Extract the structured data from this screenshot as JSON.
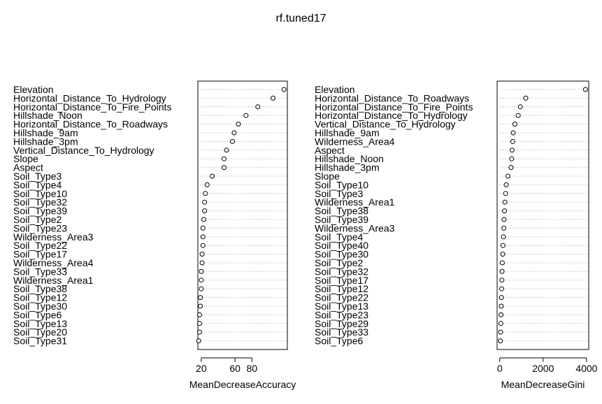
{
  "title": "rf.tuned17",
  "chart_data": [
    {
      "type": "dotchart",
      "xlabel": "MeanDecreaseAccuracy",
      "xticks": [
        20,
        60,
        80
      ],
      "xlim": [
        16,
        122
      ],
      "labels": [
        "Elevation",
        "Horizontal_Distance_To_Hydrology",
        "Horizontal_Distance_To_Fire_Points",
        "Hillshade_Noon",
        "Horizontal_Distance_To_Roadways",
        "Hillshade_9am",
        "Hillshade_3pm",
        "Vertical_Distance_To_Hydrology",
        "Slope",
        "Aspect",
        "Soil_Type3",
        "Soil_Type4",
        "Soil_Type10",
        "Soil_Type32",
        "Soil_Type39",
        "Soil_Type2",
        "Soil_Type23",
        "Wilderness_Area3",
        "Soil_Type22",
        "Soil_Type17",
        "Wilderness_Area4",
        "Soil_Type33",
        "Wilderness_Area1",
        "Soil_Type38",
        "Soil_Type12",
        "Soil_Type30",
        "Soil_Type6",
        "Soil_Type13",
        "Soil_Type20",
        "Soil_Type31"
      ],
      "values": [
        118,
        105,
        87,
        73,
        64,
        59,
        57,
        50,
        47,
        47,
        33,
        27,
        25,
        24,
        24,
        23,
        22,
        22,
        22,
        21,
        21,
        20,
        20,
        20,
        19,
        19,
        18,
        18,
        18,
        17
      ]
    },
    {
      "type": "dotchart",
      "xlabel": "MeanDecreaseGini",
      "xticks": [
        0,
        2000,
        4000
      ],
      "xlim": [
        -120,
        4100
      ],
      "labels": [
        "Elevation",
        "Horizontal_Distance_To_Roadways",
        "Horizontal_Distance_To_Fire_Points",
        "Horizontal_Distance_To_Hydrology",
        "Vertical_Distance_To_Hydrology",
        "Hillshade_9am",
        "Wilderness_Area4",
        "Aspect",
        "Hillshade_Noon",
        "Hillshade_3pm",
        "Slope",
        "Soil_Type10",
        "Soil_Type3",
        "Wilderness_Area1",
        "Soil_Type38",
        "Soil_Type39",
        "Wilderness_Area3",
        "Soil_Type4",
        "Soil_Type40",
        "Soil_Type30",
        "Soil_Type2",
        "Soil_Type32",
        "Soil_Type17",
        "Soil_Type12",
        "Soil_Type22",
        "Soil_Type13",
        "Soil_Type23",
        "Soil_Type29",
        "Soil_Type33",
        "Soil_Type6"
      ],
      "values": [
        3950,
        1200,
        950,
        850,
        700,
        620,
        600,
        570,
        550,
        520,
        380,
        300,
        270,
        240,
        220,
        200,
        190,
        170,
        150,
        140,
        120,
        110,
        100,
        90,
        80,
        70,
        60,
        50,
        40,
        30
      ]
    }
  ]
}
